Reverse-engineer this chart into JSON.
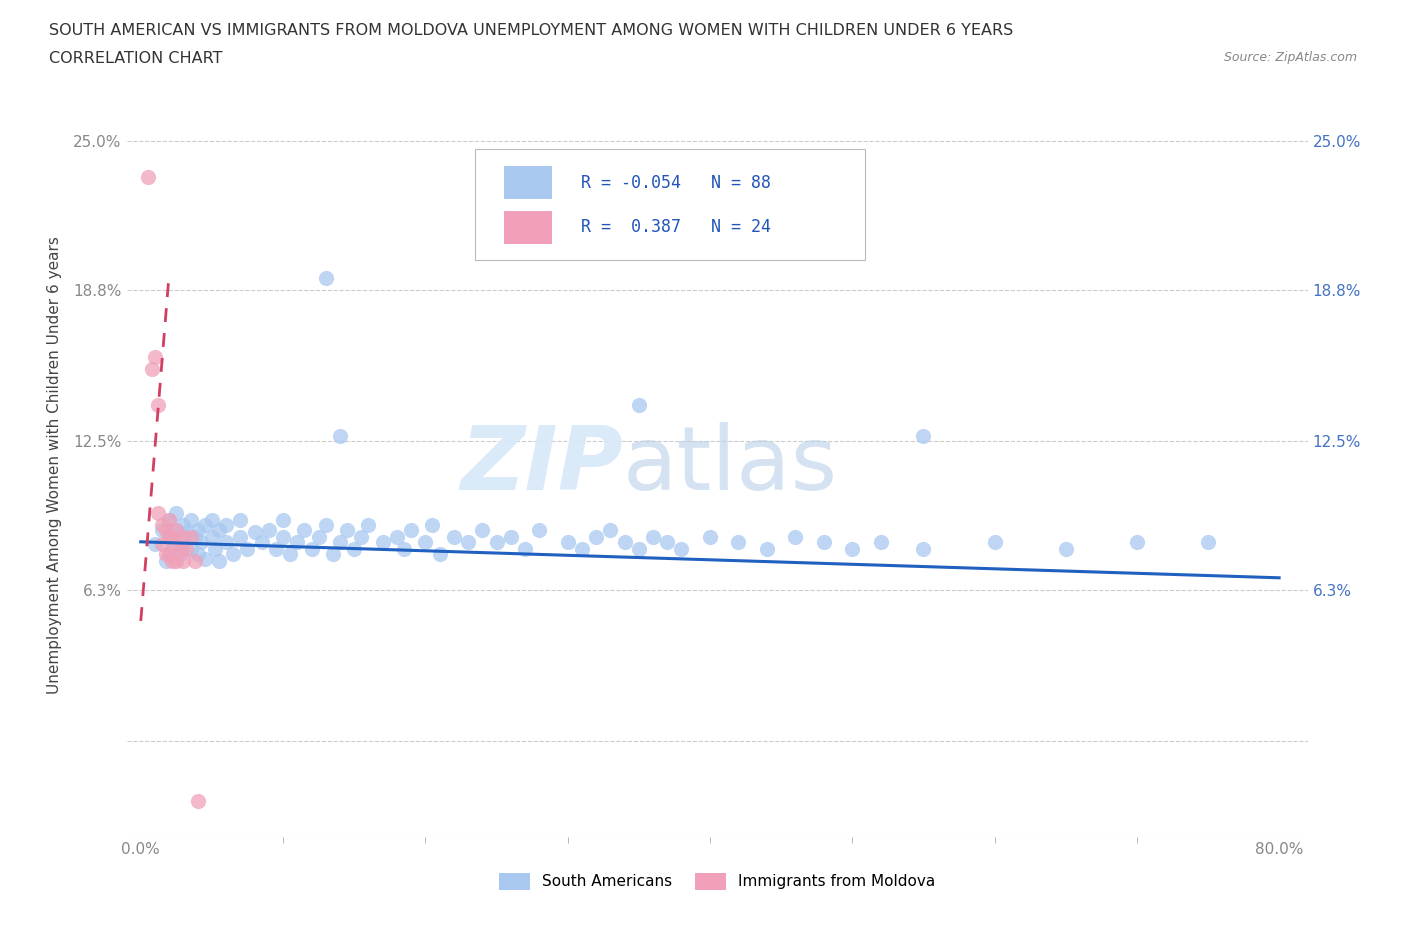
{
  "title_line1": "SOUTH AMERICAN VS IMMIGRANTS FROM MOLDOVA UNEMPLOYMENT AMONG WOMEN WITH CHILDREN UNDER 6 YEARS",
  "title_line2": "CORRELATION CHART",
  "source": "Source: ZipAtlas.com",
  "ylabel": "Unemployment Among Women with Children Under 6 years",
  "xlim": [
    -0.01,
    0.82
  ],
  "ylim": [
    -0.04,
    0.27
  ],
  "yticks": [
    0.0,
    0.063,
    0.125,
    0.188,
    0.25
  ],
  "ytick_labels_left": [
    "",
    "6.3%",
    "12.5%",
    "18.8%",
    "25.0%"
  ],
  "ytick_labels_right": [
    "6.3%",
    "12.5%",
    "18.8%",
    "25.0%"
  ],
  "yticks_right": [
    0.063,
    0.125,
    0.188,
    0.25
  ],
  "xtick_vals": [
    0.0,
    0.8
  ],
  "xtick_labels": [
    "0.0%",
    "80.0%"
  ],
  "blue_R": -0.054,
  "blue_N": 88,
  "pink_R": 0.387,
  "pink_N": 24,
  "blue_color": "#a8c8f0",
  "pink_color": "#f0a0b8",
  "blue_line_color": "#2060c0",
  "pink_line_color": "#d04060",
  "watermark_zip": "ZIP",
  "watermark_atlas": "atlas",
  "blue_line_start_y": 0.083,
  "blue_line_end_y": 0.068,
  "pink_line_x": [
    0.0,
    0.02
  ],
  "pink_line_y": [
    0.05,
    0.195
  ],
  "blue_x": [
    0.01,
    0.015,
    0.018,
    0.02,
    0.02,
    0.022,
    0.025,
    0.025,
    0.028,
    0.03,
    0.03,
    0.032,
    0.035,
    0.035,
    0.038,
    0.04,
    0.04,
    0.042,
    0.045,
    0.045,
    0.05,
    0.05,
    0.052,
    0.055,
    0.055,
    0.06,
    0.06,
    0.065,
    0.07,
    0.07,
    0.075,
    0.08,
    0.085,
    0.09,
    0.095,
    0.1,
    0.1,
    0.105,
    0.11,
    0.115,
    0.12,
    0.125,
    0.13,
    0.135,
    0.14,
    0.145,
    0.15,
    0.155,
    0.16,
    0.17,
    0.18,
    0.185,
    0.19,
    0.2,
    0.205,
    0.21,
    0.22,
    0.23,
    0.24,
    0.25,
    0.26,
    0.27,
    0.28,
    0.3,
    0.31,
    0.32,
    0.33,
    0.34,
    0.35,
    0.36,
    0.37,
    0.38,
    0.4,
    0.42,
    0.44,
    0.46,
    0.48,
    0.5,
    0.52,
    0.55,
    0.6,
    0.65,
    0.7,
    0.75,
    0.13,
    0.35,
    0.55,
    0.14
  ],
  "blue_y": [
    0.082,
    0.088,
    0.075,
    0.092,
    0.085,
    0.08,
    0.088,
    0.095,
    0.078,
    0.09,
    0.083,
    0.087,
    0.092,
    0.08,
    0.085,
    0.088,
    0.078,
    0.083,
    0.09,
    0.076,
    0.085,
    0.092,
    0.08,
    0.088,
    0.075,
    0.083,
    0.09,
    0.078,
    0.085,
    0.092,
    0.08,
    0.087,
    0.083,
    0.088,
    0.08,
    0.085,
    0.092,
    0.078,
    0.083,
    0.088,
    0.08,
    0.085,
    0.09,
    0.078,
    0.083,
    0.088,
    0.08,
    0.085,
    0.09,
    0.083,
    0.085,
    0.08,
    0.088,
    0.083,
    0.09,
    0.078,
    0.085,
    0.083,
    0.088,
    0.083,
    0.085,
    0.08,
    0.088,
    0.083,
    0.08,
    0.085,
    0.088,
    0.083,
    0.08,
    0.085,
    0.083,
    0.08,
    0.085,
    0.083,
    0.08,
    0.085,
    0.083,
    0.08,
    0.083,
    0.08,
    0.083,
    0.08,
    0.083,
    0.083,
    0.193,
    0.14,
    0.127,
    0.127
  ],
  "pink_x": [
    0.005,
    0.008,
    0.01,
    0.012,
    0.012,
    0.015,
    0.015,
    0.018,
    0.018,
    0.02,
    0.02,
    0.02,
    0.022,
    0.022,
    0.025,
    0.025,
    0.025,
    0.028,
    0.03,
    0.03,
    0.032,
    0.035,
    0.038,
    0.04
  ],
  "pink_y": [
    0.235,
    0.155,
    0.16,
    0.14,
    0.095,
    0.09,
    0.082,
    0.088,
    0.078,
    0.085,
    0.092,
    0.078,
    0.085,
    0.075,
    0.082,
    0.088,
    0.075,
    0.08,
    0.085,
    0.075,
    0.08,
    0.085,
    0.075,
    -0.025
  ]
}
